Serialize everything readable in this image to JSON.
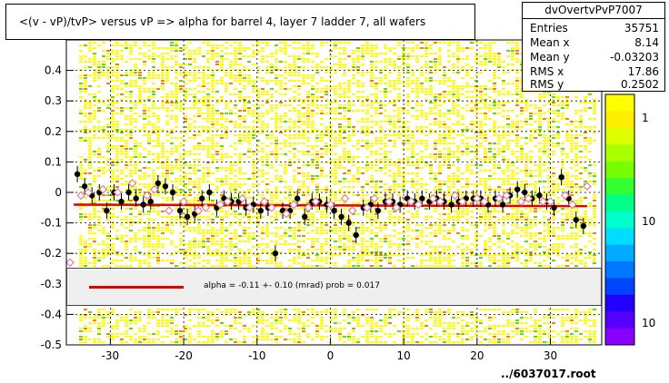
{
  "title": "<(v - vP)/tvP> versus   vP => alpha for barrel 4, layer 7 ladder 7, all wafers",
  "stats": {
    "name": "dvOvertvPvP7007",
    "rows": [
      {
        "key": "Entries",
        "value": "35751"
      },
      {
        "key": "Mean x",
        "value": "8.14"
      },
      {
        "key": "Mean y",
        "value": "-0.03203"
      },
      {
        "key": "RMS x",
        "value": "17.86"
      },
      {
        "key": "RMS y",
        "value": "0.2502"
      }
    ]
  },
  "legend": {
    "text": "alpha =   -0.11 +-  0.10 (mrad) prob = 0.017",
    "line_color": "#e00000"
  },
  "footer": "../6037017.root",
  "chart_data": {
    "type": "scatter",
    "xlim": [
      -36,
      37
    ],
    "ylim": [
      -0.5,
      0.5
    ],
    "x_ticks": [
      -30,
      -20,
      -10,
      0,
      10,
      20,
      30
    ],
    "y_ticks": [
      -0.5,
      -0.4,
      -0.3,
      -0.2,
      -0.1,
      0,
      0.1,
      0.2,
      0.3,
      0.4
    ],
    "y_tick_labels": [
      "-0.5",
      "-0.4",
      "-0.3",
      "-0.2",
      "-0.1",
      "0",
      "0.1",
      "0.2",
      "0.3",
      "0.4"
    ],
    "x_tick_labels": [
      "-30",
      "-20",
      "-10",
      "0",
      "10",
      "20",
      "30"
    ],
    "colorbar_labels": [
      "1",
      "10",
      "10"
    ],
    "grid": true,
    "fit_line": {
      "x": [
        -35,
        35
      ],
      "y": [
        -0.04,
        -0.045
      ],
      "color": "#e00000"
    },
    "series": [
      {
        "marker": "filled-circle",
        "color": "#000000",
        "x": [
          -34.5,
          -33.5,
          -32.5,
          -31.5,
          -30.5,
          -29.5,
          -28.5,
          -27.5,
          -26.5,
          -25.5,
          -24.5,
          -23.5,
          -22.5,
          -21.5,
          -20.5,
          -19.5,
          -18.5,
          -17.5,
          -16.5,
          -15.5,
          -14.5,
          -13.5,
          -12.5,
          -11.5,
          -10.5,
          -9.5,
          -8.5,
          -7.5,
          -6.5,
          -5.5,
          -4.5,
          -3.5,
          -2.5,
          -1.5,
          -0.5,
          0.5,
          1.5,
          2.5,
          3.5,
          4.5,
          5.5,
          6.5,
          7.5,
          8.5,
          9.5,
          10.5,
          11.5,
          12.5,
          13.5,
          14.5,
          15.5,
          16.5,
          17.5,
          18.5,
          19.5,
          20.5,
          21.5,
          22.5,
          23.5,
          24.5,
          25.5,
          26.5,
          27.5,
          28.5,
          29.5,
          30.5,
          31.5,
          32.5,
          33.5,
          34.5
        ],
        "y": [
          0.06,
          0.02,
          -0.01,
          0.0,
          -0.06,
          0.0,
          -0.03,
          0.0,
          -0.02,
          -0.04,
          -0.03,
          0.03,
          0.02,
          0.0,
          -0.06,
          -0.08,
          -0.07,
          -0.02,
          0.0,
          -0.05,
          -0.02,
          -0.03,
          -0.03,
          -0.05,
          -0.04,
          -0.06,
          -0.05,
          -0.2,
          -0.06,
          -0.06,
          -0.02,
          -0.08,
          -0.03,
          -0.03,
          -0.04,
          -0.06,
          -0.08,
          -0.1,
          -0.14,
          -0.05,
          -0.04,
          -0.06,
          -0.03,
          -0.03,
          -0.04,
          -0.02,
          -0.03,
          -0.02,
          -0.03,
          -0.02,
          -0.03,
          -0.04,
          -0.03,
          -0.02,
          -0.02,
          -0.02,
          -0.04,
          -0.02,
          -0.04,
          -0.01,
          0.01,
          0.0,
          -0.02,
          -0.01,
          -0.03,
          -0.05,
          0.05,
          -0.02,
          -0.09,
          -0.11
        ]
      },
      {
        "marker": "open-diamond",
        "color": "#e080a0",
        "x": [
          -35.5,
          -34,
          -33,
          -31,
          -29,
          -27,
          -25,
          -24,
          -22,
          -20,
          -18,
          -17,
          -15,
          -14,
          -12,
          -11,
          -9,
          -8,
          -6,
          -5,
          -3,
          -2,
          0,
          2,
          3,
          5,
          6,
          8,
          9,
          11,
          12,
          14,
          15,
          17,
          18,
          20,
          21,
          23,
          24,
          26,
          27,
          29,
          30,
          32,
          33,
          35
        ],
        "y": [
          -0.23,
          -0.01,
          0.0,
          0.01,
          0.0,
          0.03,
          -0.01,
          0.01,
          -0.06,
          -0.03,
          -0.06,
          -0.05,
          -0.04,
          -0.03,
          -0.02,
          -0.05,
          -0.03,
          -0.05,
          -0.07,
          -0.04,
          -0.05,
          -0.03,
          -0.04,
          -0.02,
          -0.06,
          -0.05,
          -0.02,
          -0.03,
          -0.05,
          -0.03,
          -0.04,
          -0.02,
          -0.03,
          -0.01,
          -0.03,
          -0.02,
          -0.03,
          -0.02,
          -0.01,
          -0.03,
          -0.02,
          -0.03,
          -0.03,
          -0.01,
          -0.04,
          0.02
        ]
      }
    ]
  }
}
